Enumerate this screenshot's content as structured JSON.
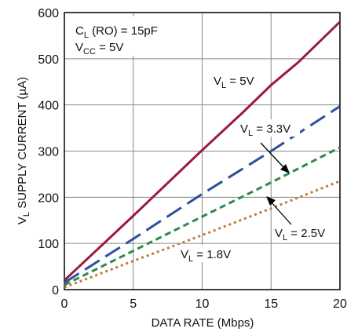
{
  "chart_data": {
    "type": "line",
    "xlabel": "DATA RATE (Mbps)",
    "ylabel": {
      "prefix": "V",
      "sub": "L",
      "suffix": " SUPPLY CURRENT (µA)"
    },
    "xlim": [
      0,
      20
    ],
    "ylim": [
      0,
      600
    ],
    "x_ticks": [
      0,
      5,
      10,
      15,
      20
    ],
    "y_ticks": [
      0,
      100,
      200,
      300,
      400,
      500,
      600
    ],
    "x_tick_labels": [
      "0",
      "5",
      "10",
      "15",
      "20"
    ],
    "y_tick_labels": [
      "0",
      "100",
      "200",
      "300",
      "400",
      "500",
      "600"
    ],
    "grid": true,
    "conditions": [
      {
        "prefix": "C",
        "sub": "L",
        "suffix": " (RO) = 15pF"
      },
      {
        "prefix": "V",
        "sub": "CC",
        "suffix": " = 5V"
      }
    ],
    "series": [
      {
        "name": "5V",
        "label_prefix": "V",
        "label_sub": "L",
        "label_suffix": " = 5V",
        "color": "#9b1b3c",
        "dash": "solid",
        "x": [
          0,
          5,
          10,
          13,
          15,
          16,
          17,
          20
        ],
        "y": [
          20,
          160,
          302,
          385,
          443,
          468,
          493,
          580
        ]
      },
      {
        "name": "3.3V",
        "label_prefix": "V",
        "label_sub": "L",
        "label_suffix": " = 3.3V",
        "color": "#2f4fa0",
        "dash": "longdash",
        "x": [
          0,
          5,
          10,
          15,
          20
        ],
        "y": [
          15,
          110,
          207,
          300,
          397
        ]
      },
      {
        "name": "2.5V",
        "label_prefix": "V",
        "label_sub": "L",
        "label_suffix": " = 2.5V",
        "color": "#2e8a4a",
        "dash": "shortdash",
        "x": [
          0,
          5,
          10,
          15,
          20
        ],
        "y": [
          10,
          84,
          158,
          232,
          308
        ]
      },
      {
        "name": "1.8V",
        "label_prefix": "V",
        "label_sub": "L",
        "label_suffix": " = 1.8V",
        "color": "#c07a3a",
        "dash": "dotted",
        "x": [
          0,
          5,
          10,
          15,
          20
        ],
        "y": [
          5,
          62,
          118,
          176,
          235
        ]
      }
    ]
  }
}
